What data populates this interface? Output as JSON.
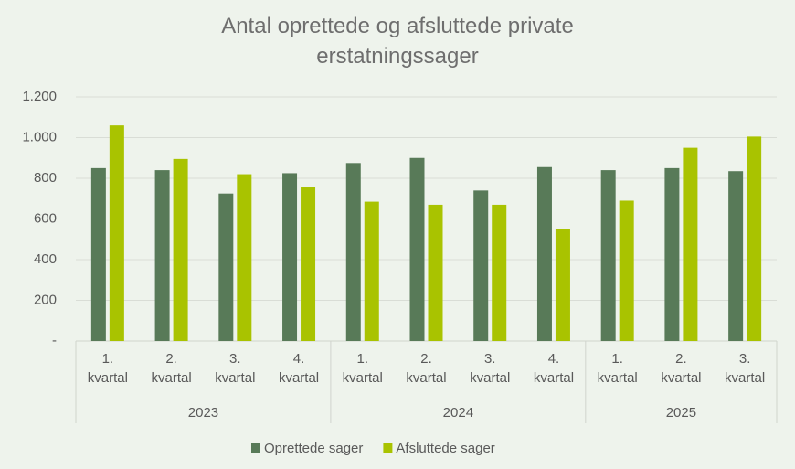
{
  "chart_data": {
    "type": "bar",
    "title": "Antal oprettede og afsluttede private erstatningssager",
    "groups": [
      {
        "name": "2023",
        "categories": [
          "1. kvartal",
          "2. kvartal",
          "3. kvartal",
          "4. kvartal"
        ]
      },
      {
        "name": "2024",
        "categories": [
          "1. kvartal",
          "2. kvartal",
          "3. kvartal",
          "4. kvartal"
        ]
      },
      {
        "name": "2025",
        "categories": [
          "1. kvartal",
          "2. kvartal",
          "3. kvartal"
        ]
      }
    ],
    "series": [
      {
        "name": "Oprettede sager",
        "color": "#587a58",
        "values": [
          850,
          840,
          725,
          825,
          875,
          900,
          740,
          855,
          840,
          850,
          835
        ]
      },
      {
        "name": "Afsluttede sager",
        "color": "#a9c300",
        "values": [
          1060,
          895,
          820,
          755,
          685,
          670,
          670,
          550,
          690,
          950,
          1005
        ]
      }
    ],
    "ylim": [
      0,
      1200
    ],
    "yticks": [
      {
        "value": 0,
        "label": "-"
      },
      200,
      400,
      600,
      800,
      {
        "value": 1000,
        "label": "1.000"
      },
      {
        "value": 1200,
        "label": "1.200"
      }
    ],
    "grid": true,
    "legend": "bottom"
  }
}
